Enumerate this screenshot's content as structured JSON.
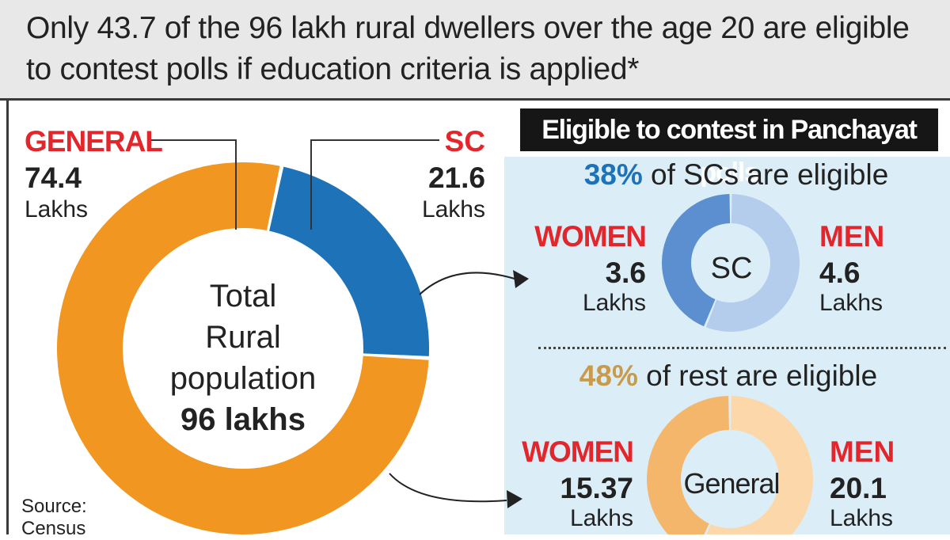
{
  "header": {
    "headline": "Only 43.7 of the 96 lakh rural dwellers over the age 20 are eligible to contest polls if education criteria is applied*"
  },
  "main_donut": {
    "general_label": "GENERAL",
    "general_value": "74.4",
    "general_unit": "Lakhs",
    "sc_label": "SC",
    "sc_value": "21.6",
    "sc_unit": "Lakhs",
    "center_line1": "Total",
    "center_line2": "Rural",
    "center_line3": "population",
    "center_total": "96 lakhs"
  },
  "source": {
    "line1": "Source:",
    "line2": "Census"
  },
  "right_panel": {
    "title": "Eligible to contest in Panchayat polls",
    "sc_section": {
      "pct": "38%",
      "caption": "of SCs are eligible",
      "women_label": "WOMEN",
      "women_value": "3.6",
      "women_unit": "Lakhs",
      "men_label": "MEN",
      "men_value": "4.6",
      "men_unit": "Lakhs",
      "center": "SC"
    },
    "rest_section": {
      "pct": "48%",
      "caption": "of rest are eligible",
      "women_label": "WOMEN",
      "women_value": "15.37",
      "women_unit": "Lakhs",
      "men_label": "MEN",
      "men_value": "20.1",
      "men_unit": "Lakhs",
      "center": "General"
    }
  },
  "colors": {
    "general": "#f19620",
    "sc": "#1d72b8",
    "sc_women": "#5b8fcf",
    "sc_men": "#b5cdec",
    "gen_women": "#f4b66b",
    "gen_men": "#fbd7a9",
    "accent_red": "#e2262b",
    "pct_blue": "#1d72b8",
    "pct_orange": "#c99a4b"
  },
  "chart_data": [
    {
      "type": "pie",
      "categories": [
        "GENERAL",
        "SC"
      ],
      "values": [
        74.4,
        21.6
      ],
      "unit": "Lakhs",
      "total": 96
    },
    {
      "type": "pie",
      "categories": [
        "WOMEN",
        "MEN"
      ],
      "values": [
        3.6,
        4.6
      ],
      "unit": "Lakhs"
    },
    {
      "type": "pie",
      "categories": [
        "WOMEN",
        "MEN"
      ],
      "values": [
        15.37,
        20.1
      ],
      "unit": "Lakhs"
    }
  ]
}
